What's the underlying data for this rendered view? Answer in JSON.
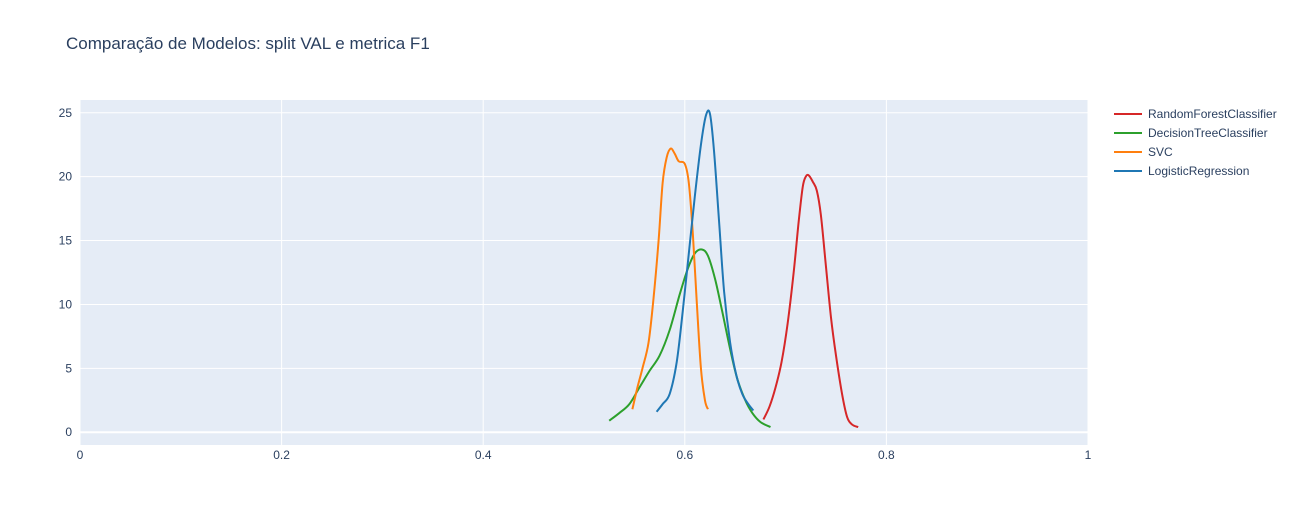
{
  "chart_data": {
    "type": "line",
    "title": "Comparação de Modelos: split VAL e metrica F1",
    "xlabel": "",
    "ylabel": "",
    "xlim": [
      0,
      1
    ],
    "ylim": [
      -1,
      26
    ],
    "x_ticks": [
      0,
      0.2,
      0.4,
      0.6,
      0.8,
      1
    ],
    "x_tick_labels": [
      "0",
      "0.2",
      "0.4",
      "0.6",
      "0.8",
      "1"
    ],
    "y_ticks": [
      0,
      5,
      10,
      15,
      20,
      25
    ],
    "y_tick_labels": [
      "0",
      "5",
      "10",
      "15",
      "20",
      "25"
    ],
    "grid": true,
    "legend_position": "right",
    "series": [
      {
        "name": "RandomForestClassifier",
        "color": "#d62728",
        "points": [
          [
            0.678,
            1.0
          ],
          [
            0.684,
            2.0
          ],
          [
            0.69,
            3.5
          ],
          [
            0.696,
            5.5
          ],
          [
            0.702,
            8.5
          ],
          [
            0.708,
            12.5
          ],
          [
            0.713,
            16.5
          ],
          [
            0.717,
            19.2
          ],
          [
            0.72,
            20.0
          ],
          [
            0.723,
            20.1
          ],
          [
            0.727,
            19.6
          ],
          [
            0.731,
            18.9
          ],
          [
            0.735,
            17.0
          ],
          [
            0.74,
            13.0
          ],
          [
            0.745,
            9.0
          ],
          [
            0.75,
            6.0
          ],
          [
            0.756,
            3.0
          ],
          [
            0.761,
            1.2
          ],
          [
            0.766,
            0.6
          ],
          [
            0.772,
            0.4
          ]
        ]
      },
      {
        "name": "DecisionTreeClassifier",
        "color": "#2ca02c",
        "points": [
          [
            0.525,
            0.9
          ],
          [
            0.535,
            1.5
          ],
          [
            0.545,
            2.2
          ],
          [
            0.555,
            3.5
          ],
          [
            0.565,
            4.8
          ],
          [
            0.575,
            6.0
          ],
          [
            0.585,
            8.0
          ],
          [
            0.595,
            10.8
          ],
          [
            0.603,
            12.8
          ],
          [
            0.61,
            14.0
          ],
          [
            0.617,
            14.3
          ],
          [
            0.623,
            13.8
          ],
          [
            0.63,
            12.0
          ],
          [
            0.637,
            9.5
          ],
          [
            0.645,
            6.5
          ],
          [
            0.652,
            4.2
          ],
          [
            0.66,
            2.5
          ],
          [
            0.667,
            1.5
          ],
          [
            0.675,
            0.8
          ],
          [
            0.685,
            0.4
          ]
        ]
      },
      {
        "name": "SVC",
        "color": "#ff7f0e",
        "points": [
          [
            0.548,
            1.8
          ],
          [
            0.553,
            3.5
          ],
          [
            0.558,
            5.0
          ],
          [
            0.564,
            7.0
          ],
          [
            0.569,
            10.5
          ],
          [
            0.574,
            15.0
          ],
          [
            0.578,
            19.5
          ],
          [
            0.582,
            21.5
          ],
          [
            0.586,
            22.2
          ],
          [
            0.59,
            21.8
          ],
          [
            0.594,
            21.2
          ],
          [
            0.6,
            21.0
          ],
          [
            0.604,
            19.5
          ],
          [
            0.608,
            15.5
          ],
          [
            0.612,
            10.0
          ],
          [
            0.616,
            5.0
          ],
          [
            0.62,
            2.5
          ],
          [
            0.623,
            1.8
          ]
        ]
      },
      {
        "name": "LogisticRegression",
        "color": "#1f77b4",
        "points": [
          [
            0.572,
            1.6
          ],
          [
            0.578,
            2.2
          ],
          [
            0.585,
            3.0
          ],
          [
            0.592,
            5.5
          ],
          [
            0.598,
            9.5
          ],
          [
            0.604,
            14.0
          ],
          [
            0.61,
            18.5
          ],
          [
            0.616,
            22.5
          ],
          [
            0.621,
            24.8
          ],
          [
            0.625,
            24.9
          ],
          [
            0.629,
            22.0
          ],
          [
            0.634,
            16.5
          ],
          [
            0.639,
            11.0
          ],
          [
            0.645,
            7.0
          ],
          [
            0.651,
            4.5
          ],
          [
            0.657,
            3.0
          ],
          [
            0.663,
            2.2
          ],
          [
            0.668,
            1.7
          ]
        ]
      }
    ]
  }
}
